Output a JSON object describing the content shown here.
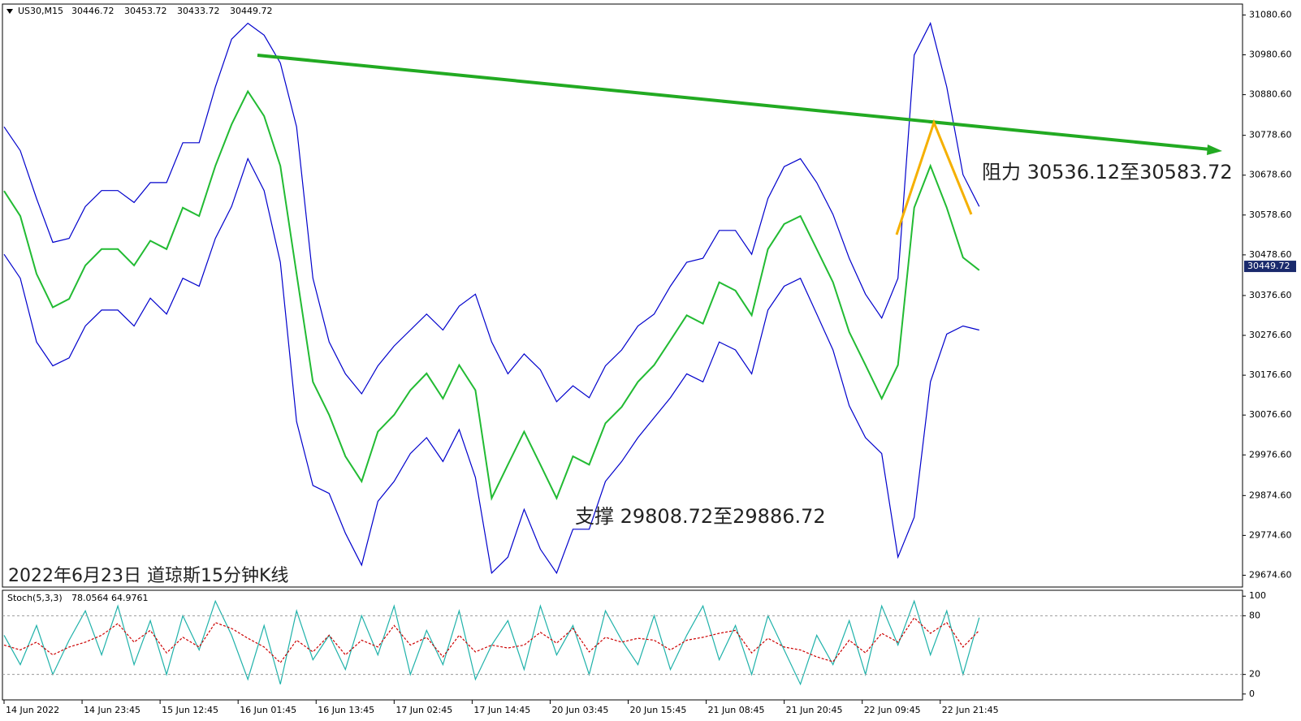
{
  "chart_data": [
    {
      "type": "line",
      "symbol": "US30,M15",
      "ohlc": [
        30446.72,
        30453.72,
        30433.72,
        30449.72
      ],
      "annotations": [
        "阻力 30536.12至30583.72",
        "支撑 29808.72至29886.72",
        "2022年6月23日 道琼斯15分钟K线"
      ],
      "x": [
        0,
        20,
        40,
        60,
        80,
        100,
        120,
        140,
        160,
        180,
        200,
        220,
        240,
        260,
        280,
        300,
        320,
        340,
        360,
        380,
        400,
        420,
        440,
        460,
        480,
        500,
        520,
        540,
        560,
        580,
        600,
        620,
        640,
        660,
        680,
        700,
        720,
        740,
        760,
        780,
        800,
        820,
        840,
        860,
        880,
        900,
        920,
        940,
        960,
        980,
        1000,
        1020,
        1040,
        1060,
        1080,
        1100,
        1120,
        1140,
        1160,
        1180,
        1200
      ],
      "series": [
        {
          "color": "#22bb33",
          "values": [
            30639,
            30576,
            30431,
            30347,
            30368,
            30452,
            30493,
            30493,
            30452,
            30514,
            30493,
            30597,
            30576,
            30702,
            30806,
            30889,
            30827,
            30702,
            30431,
            30160,
            30077,
            29973,
            29910,
            30035,
            30077,
            30139,
            30181,
            30118,
            30202,
            30139,
            29868,
            29952,
            30035,
            29952,
            29868,
            29973,
            29952,
            30056,
            30097,
            30160,
            30202,
            30264,
            30327,
            30306,
            30410,
            30389,
            30327,
            30493,
            30556,
            30576,
            30493,
            30410,
            30285,
            30202,
            30118,
            30202,
            30597,
            30702,
            30597,
            30472,
            30440
          ]
        },
        {
          "color": "#0000cc",
          "values": [
            30800,
            30740,
            30620,
            30510,
            30520,
            30600,
            30640,
            30640,
            30610,
            30660,
            30660,
            30760,
            30760,
            30900,
            31020,
            31060,
            31030,
            30960,
            30800,
            30420,
            30260,
            30180,
            30130,
            30200,
            30250,
            30290,
            30330,
            30290,
            30350,
            30380,
            30260,
            30180,
            30230,
            30190,
            30110,
            30150,
            30120,
            30200,
            30240,
            30300,
            30330,
            30400,
            30460,
            30470,
            30540,
            30540,
            30480,
            30620,
            30700,
            30720,
            30660,
            30580,
            30470,
            30380,
            30320,
            30420,
            30980,
            31060,
            30900,
            30680,
            30600
          ]
        },
        {
          "color": "#0000cc",
          "values": [
            30480,
            30420,
            30260,
            30200,
            30220,
            30300,
            30340,
            30340,
            30300,
            30370,
            30330,
            30420,
            30400,
            30520,
            30600,
            30720,
            30640,
            30460,
            30060,
            29900,
            29880,
            29780,
            29700,
            29860,
            29910,
            29980,
            30020,
            29960,
            30040,
            29920,
            29680,
            29720,
            29840,
            29740,
            29680,
            29790,
            29790,
            29910,
            29960,
            30020,
            30070,
            30120,
            30180,
            30160,
            30260,
            30240,
            30180,
            30340,
            30400,
            30420,
            30330,
            30240,
            30100,
            30020,
            29980,
            29720,
            29820,
            30160,
            30280,
            30300,
            30290
          ]
        }
      ],
      "xlim": [
        -2,
        1524
      ],
      "xticks": [
        {
          "value": 0,
          "label": "14 Jun 2022"
        },
        {
          "value": 96,
          "label": "14 Jun 23:45"
        },
        {
          "value": 192,
          "label": "15 Jun 12:45"
        },
        {
          "value": 288,
          "label": "16 Jun 01:45"
        },
        {
          "value": 384,
          "label": "16 Jun 13:45"
        },
        {
          "value": 480,
          "label": "17 Jun 02:45"
        },
        {
          "value": 576,
          "label": "17 Jun 14:45"
        },
        {
          "value": 672,
          "label": "20 Jun 03:45"
        },
        {
          "value": 768,
          "label": "20 Jun 15:45"
        },
        {
          "value": 864,
          "label": "21 Jun 08:45"
        },
        {
          "value": 960,
          "label": "21 Jun 20:45"
        },
        {
          "value": 1056,
          "label": "22 Jun 09:45"
        },
        {
          "value": 1152,
          "label": "22 Jun 21:45"
        }
      ],
      "ylim": [
        29645,
        31108
      ],
      "yticks": [
        {
          "value": 31080.6,
          "label": "31080.60"
        },
        {
          "value": 30980.6,
          "label": "30980.60"
        },
        {
          "value": 30880.6,
          "label": "30880.60"
        },
        {
          "value": 30778.6,
          "label": "30778.60"
        },
        {
          "value": 30678.6,
          "label": "30678.60"
        },
        {
          "value": 30578.6,
          "label": "30578.60"
        },
        {
          "value": 30478.6,
          "label": "30478.60"
        },
        {
          "value": 30376.6,
          "label": "30376.60"
        },
        {
          "value": 30276.6,
          "label": "30276.60"
        },
        {
          "value": 30176.6,
          "label": "30176.60"
        },
        {
          "value": 30076.6,
          "label": "30076.60"
        },
        {
          "value": 29976.6,
          "label": "29976.60"
        },
        {
          "value": 29874.6,
          "label": "29874.60"
        },
        {
          "value": 29774.6,
          "label": "29774.60"
        },
        {
          "value": 29674.6,
          "label": "29674.60"
        }
      ]
    },
    {
      "type": "line",
      "title": "Stoch(5,3,3)",
      "readout": [
        78.0564,
        64.9761
      ],
      "x": [
        0,
        20,
        40,
        60,
        80,
        100,
        120,
        140,
        160,
        180,
        200,
        220,
        240,
        260,
        280,
        300,
        320,
        340,
        360,
        380,
        400,
        420,
        440,
        460,
        480,
        500,
        520,
        540,
        560,
        580,
        600,
        620,
        640,
        660,
        680,
        700,
        720,
        740,
        760,
        780,
        800,
        820,
        840,
        860,
        880,
        900,
        920,
        940,
        960,
        980,
        1000,
        1020,
        1040,
        1060,
        1080,
        1100,
        1120,
        1140,
        1160,
        1180,
        1200
      ],
      "series": [
        {
          "color": "#20b2aa",
          "values": [
            60,
            30,
            70,
            20,
            55,
            85,
            40,
            90,
            30,
            75,
            20,
            80,
            45,
            95,
            60,
            15,
            70,
            10,
            85,
            35,
            60,
            25,
            80,
            40,
            90,
            20,
            65,
            30,
            85,
            15,
            50,
            75,
            25,
            90,
            40,
            70,
            20,
            85,
            55,
            30,
            80,
            25,
            60,
            90,
            35,
            70,
            20,
            80,
            45,
            10,
            60,
            30,
            75,
            20,
            90,
            50,
            95,
            40,
            85,
            20,
            78.0564
          ]
        },
        {
          "color": "#cc0000",
          "dashed": true,
          "values": [
            50,
            45,
            53,
            40,
            48,
            53,
            60,
            72,
            53,
            65,
            42,
            58,
            48,
            73,
            67,
            57,
            48,
            32,
            55,
            43,
            60,
            40,
            55,
            48,
            70,
            50,
            58,
            38,
            60,
            43,
            50,
            47,
            50,
            63,
            52,
            67,
            43,
            58,
            53,
            57,
            55,
            45,
            55,
            58,
            62,
            65,
            42,
            57,
            48,
            45,
            38,
            33,
            55,
            42,
            62,
            53,
            78,
            62,
            73,
            48,
            64.9761
          ]
        }
      ],
      "xlim": [
        -2,
        1524
      ],
      "ylim": [
        -6,
        106
      ],
      "yticks": [
        100,
        80,
        20,
        0
      ],
      "levels": [
        80,
        20
      ]
    }
  ]
}
